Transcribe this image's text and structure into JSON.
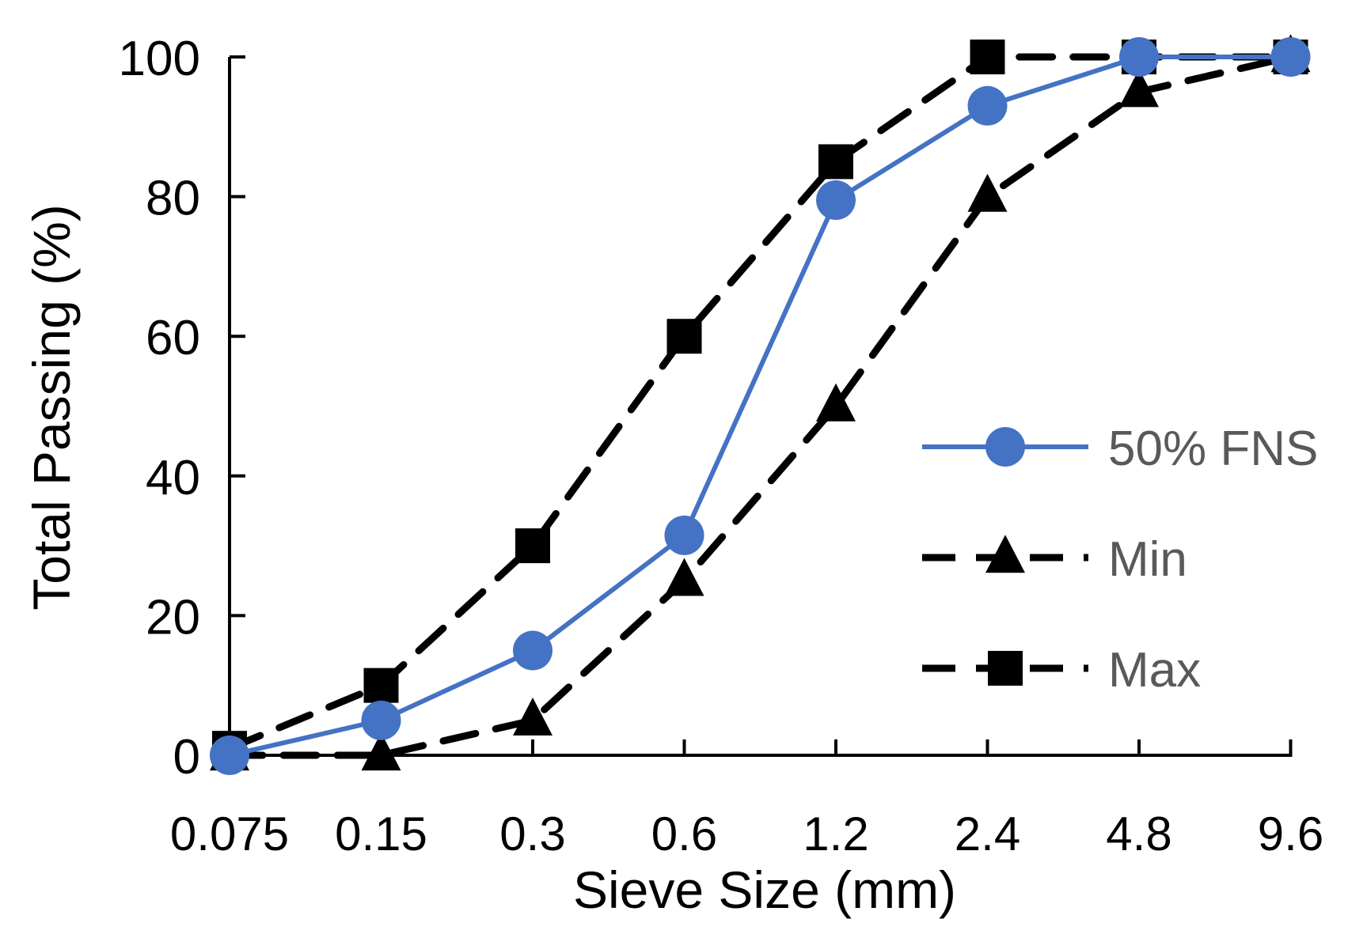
{
  "chart_data": {
    "type": "line",
    "title": "",
    "xlabel": "Sieve Size (mm)",
    "ylabel": "Total Passing (%)",
    "categories": [
      "0.075",
      "0.15",
      "0.3",
      "0.6",
      "1.2",
      "2.4",
      "4.8",
      "9.6"
    ],
    "ylim": [
      0,
      100
    ],
    "yticks": [
      "0",
      "20",
      "40",
      "60",
      "80",
      "100"
    ],
    "grid": false,
    "legend_position": "right",
    "series": [
      {
        "name": "50% FNS",
        "values": [
          0,
          5,
          15,
          31.5,
          79.5,
          93,
          100,
          100
        ],
        "color": "#4472C4",
        "marker": "circle",
        "line": "solid"
      },
      {
        "name": "Min",
        "values": [
          0,
          0,
          5,
          25,
          50,
          80,
          95,
          100
        ],
        "color": "#000000",
        "marker": "triangle",
        "line": "dashed"
      },
      {
        "name": "Max",
        "values": [
          1,
          10,
          30,
          60,
          85,
          100,
          100,
          100
        ],
        "color": "#000000",
        "marker": "square",
        "line": "dashed"
      }
    ]
  }
}
